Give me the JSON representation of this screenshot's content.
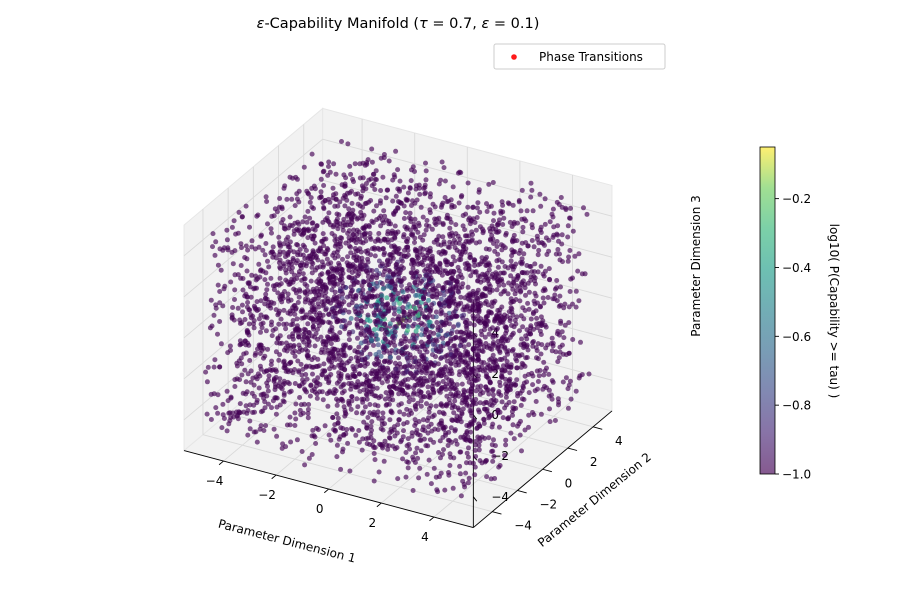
{
  "chart_data": {
    "type": "scatter",
    "projection": "3d",
    "title": {
      "prefix": "ε",
      "main": "-Capability Manifold (",
      "tau_symbol": "τ",
      "tau_value": " = 0.7, ",
      "eps_symbol": "ε",
      "eps_value": " = 0.1)"
    },
    "xlabel": "Parameter Dimension 1",
    "ylabel": "Parameter Dimension 2",
    "zlabel": "Parameter Dimension 3",
    "xlim": [
      -5.5,
      5.5
    ],
    "ylim": [
      -5.5,
      5.5
    ],
    "zlim": [
      -5.5,
      5.5
    ],
    "x_ticks": [
      "−4",
      "−2",
      "0",
      "2",
      "4"
    ],
    "y_ticks": [
      "−4",
      "−2",
      "0",
      "2",
      "4"
    ],
    "z_ticks": [
      "−4",
      "−2",
      "0",
      "2",
      "4"
    ],
    "grid": true,
    "series": [
      {
        "kind": "sampled-points",
        "distribution": "uniform cube",
        "range": [
          -5,
          5
        ],
        "count": 4000,
        "color_value": "log10(P(Capability >= tau))",
        "colormap": "viridis",
        "marker_alpha": 0.65
      },
      {
        "name": "Phase Transitions",
        "color": "#ff1a1a",
        "points": []
      }
    ],
    "legend": {
      "entries": [
        "Phase Transitions"
      ],
      "placement": "top-right"
    },
    "colorbar": {
      "label": "log10( P(Capability >= tau) )",
      "range": [
        -1.0,
        -0.05
      ],
      "ticks": [
        "−1.0",
        "−0.8",
        "−0.6",
        "−0.4",
        "−0.2"
      ],
      "colormap": "viridis"
    },
    "colors": {
      "pane_fill": "#f2f2f2",
      "grid": "#d9d9d9",
      "low": "#440154",
      "high": "#fde725"
    }
  }
}
